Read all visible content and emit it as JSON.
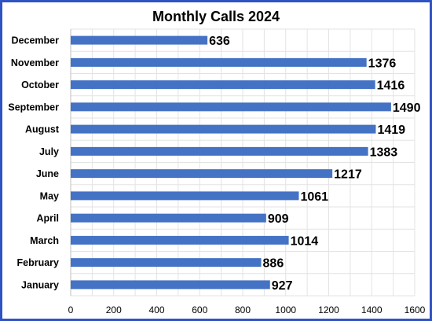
{
  "chart_data": {
    "type": "bar",
    "orientation": "horizontal",
    "title": "Monthly Calls 2024",
    "xlabel": "",
    "ylabel": "",
    "categories": [
      "December",
      "November",
      "October",
      "September",
      "August",
      "July",
      "June",
      "May",
      "April",
      "March",
      "February",
      "January"
    ],
    "values": [
      636,
      1376,
      1416,
      1490,
      1419,
      1383,
      1217,
      1061,
      909,
      1014,
      886,
      927
    ],
    "xlim": [
      0,
      1600
    ],
    "x_ticks": [
      0,
      200,
      400,
      600,
      800,
      1000,
      1200,
      1400,
      1600
    ],
    "grid": true,
    "legend": "none",
    "data_labels": true,
    "colors": {
      "bar": "#4472c4",
      "frame": "#2f52c4",
      "grid": "#e3e3e3",
      "text": "#000000"
    }
  }
}
